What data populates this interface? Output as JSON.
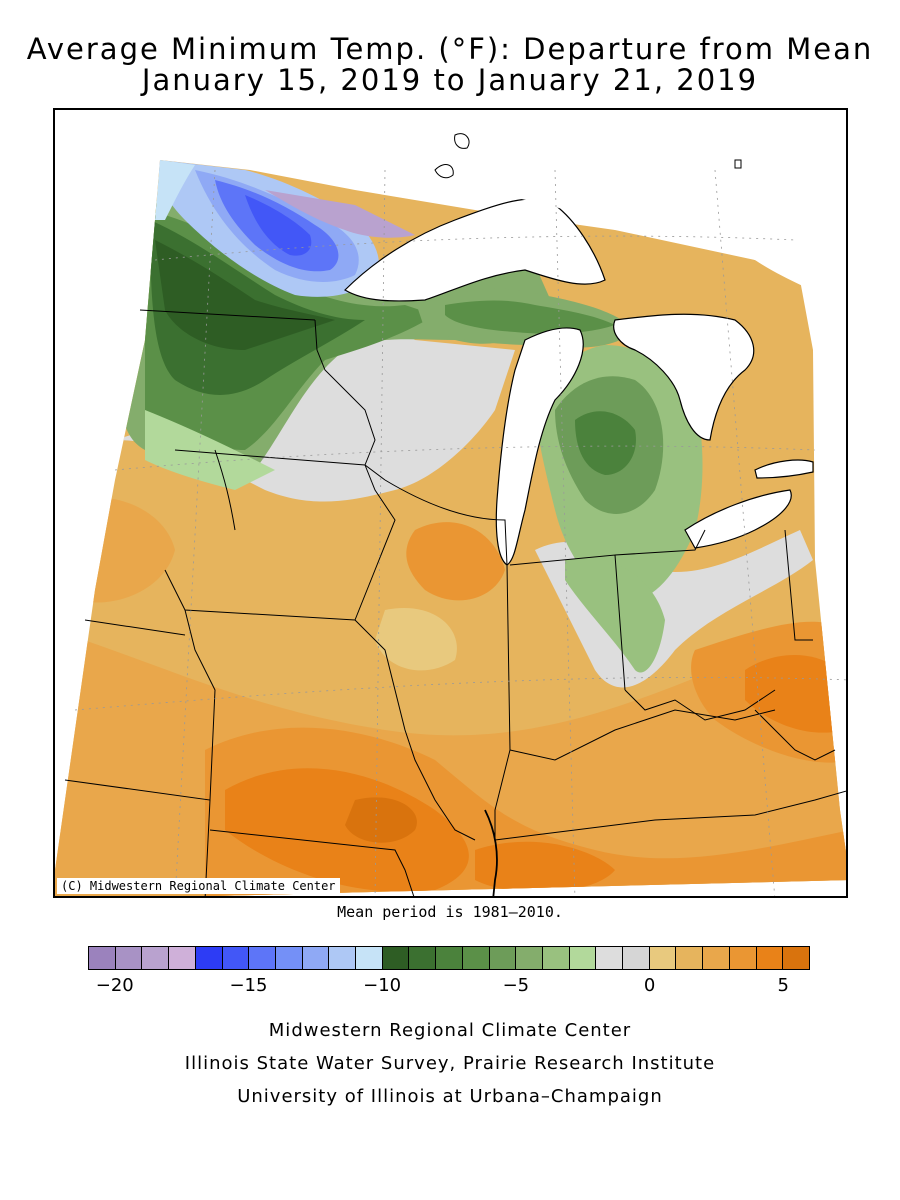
{
  "title_line1": "Average Minimum Temp. (°F): Departure from Mean",
  "title_line2": "January 15, 2019 to January 21, 2019",
  "copyright": "(C) Midwestern Regional Climate Center",
  "mean_note": "Mean period is 1981–2010.",
  "legend": {
    "colors": [
      "#9b82bd",
      "#a892c5",
      "#b9a2cf",
      "#cfb0d9",
      "#2d3cf5",
      "#4257f7",
      "#5d75f8",
      "#7490f7",
      "#8fa9f5",
      "#aec8f5",
      "#c6e3f7",
      "#2e5d24",
      "#3b7030",
      "#4b823c",
      "#5b9048",
      "#6d9c59",
      "#84ad6c",
      "#99c17f",
      "#b2d99b",
      "#dddddd",
      "#d6d6d6",
      "#e8c97e",
      "#e6b45d",
      "#e9a74b",
      "#ea9633",
      "#e98218",
      "#d9730d"
    ],
    "ticks": [
      {
        "label": "−20",
        "value": -20
      },
      {
        "label": "−15",
        "value": -15
      },
      {
        "label": "−10",
        "value": -10
      },
      {
        "label": "−5",
        "value": -5
      },
      {
        "label": "0",
        "value": 0
      },
      {
        "label": "5",
        "value": 5
      }
    ]
  },
  "credits": {
    "line1": "Midwestern Regional Climate Center",
    "line2": "Illinois State Water Survey, Prairie Research Institute",
    "line3": "University of Illinois at Urbana–Champaign"
  }
}
